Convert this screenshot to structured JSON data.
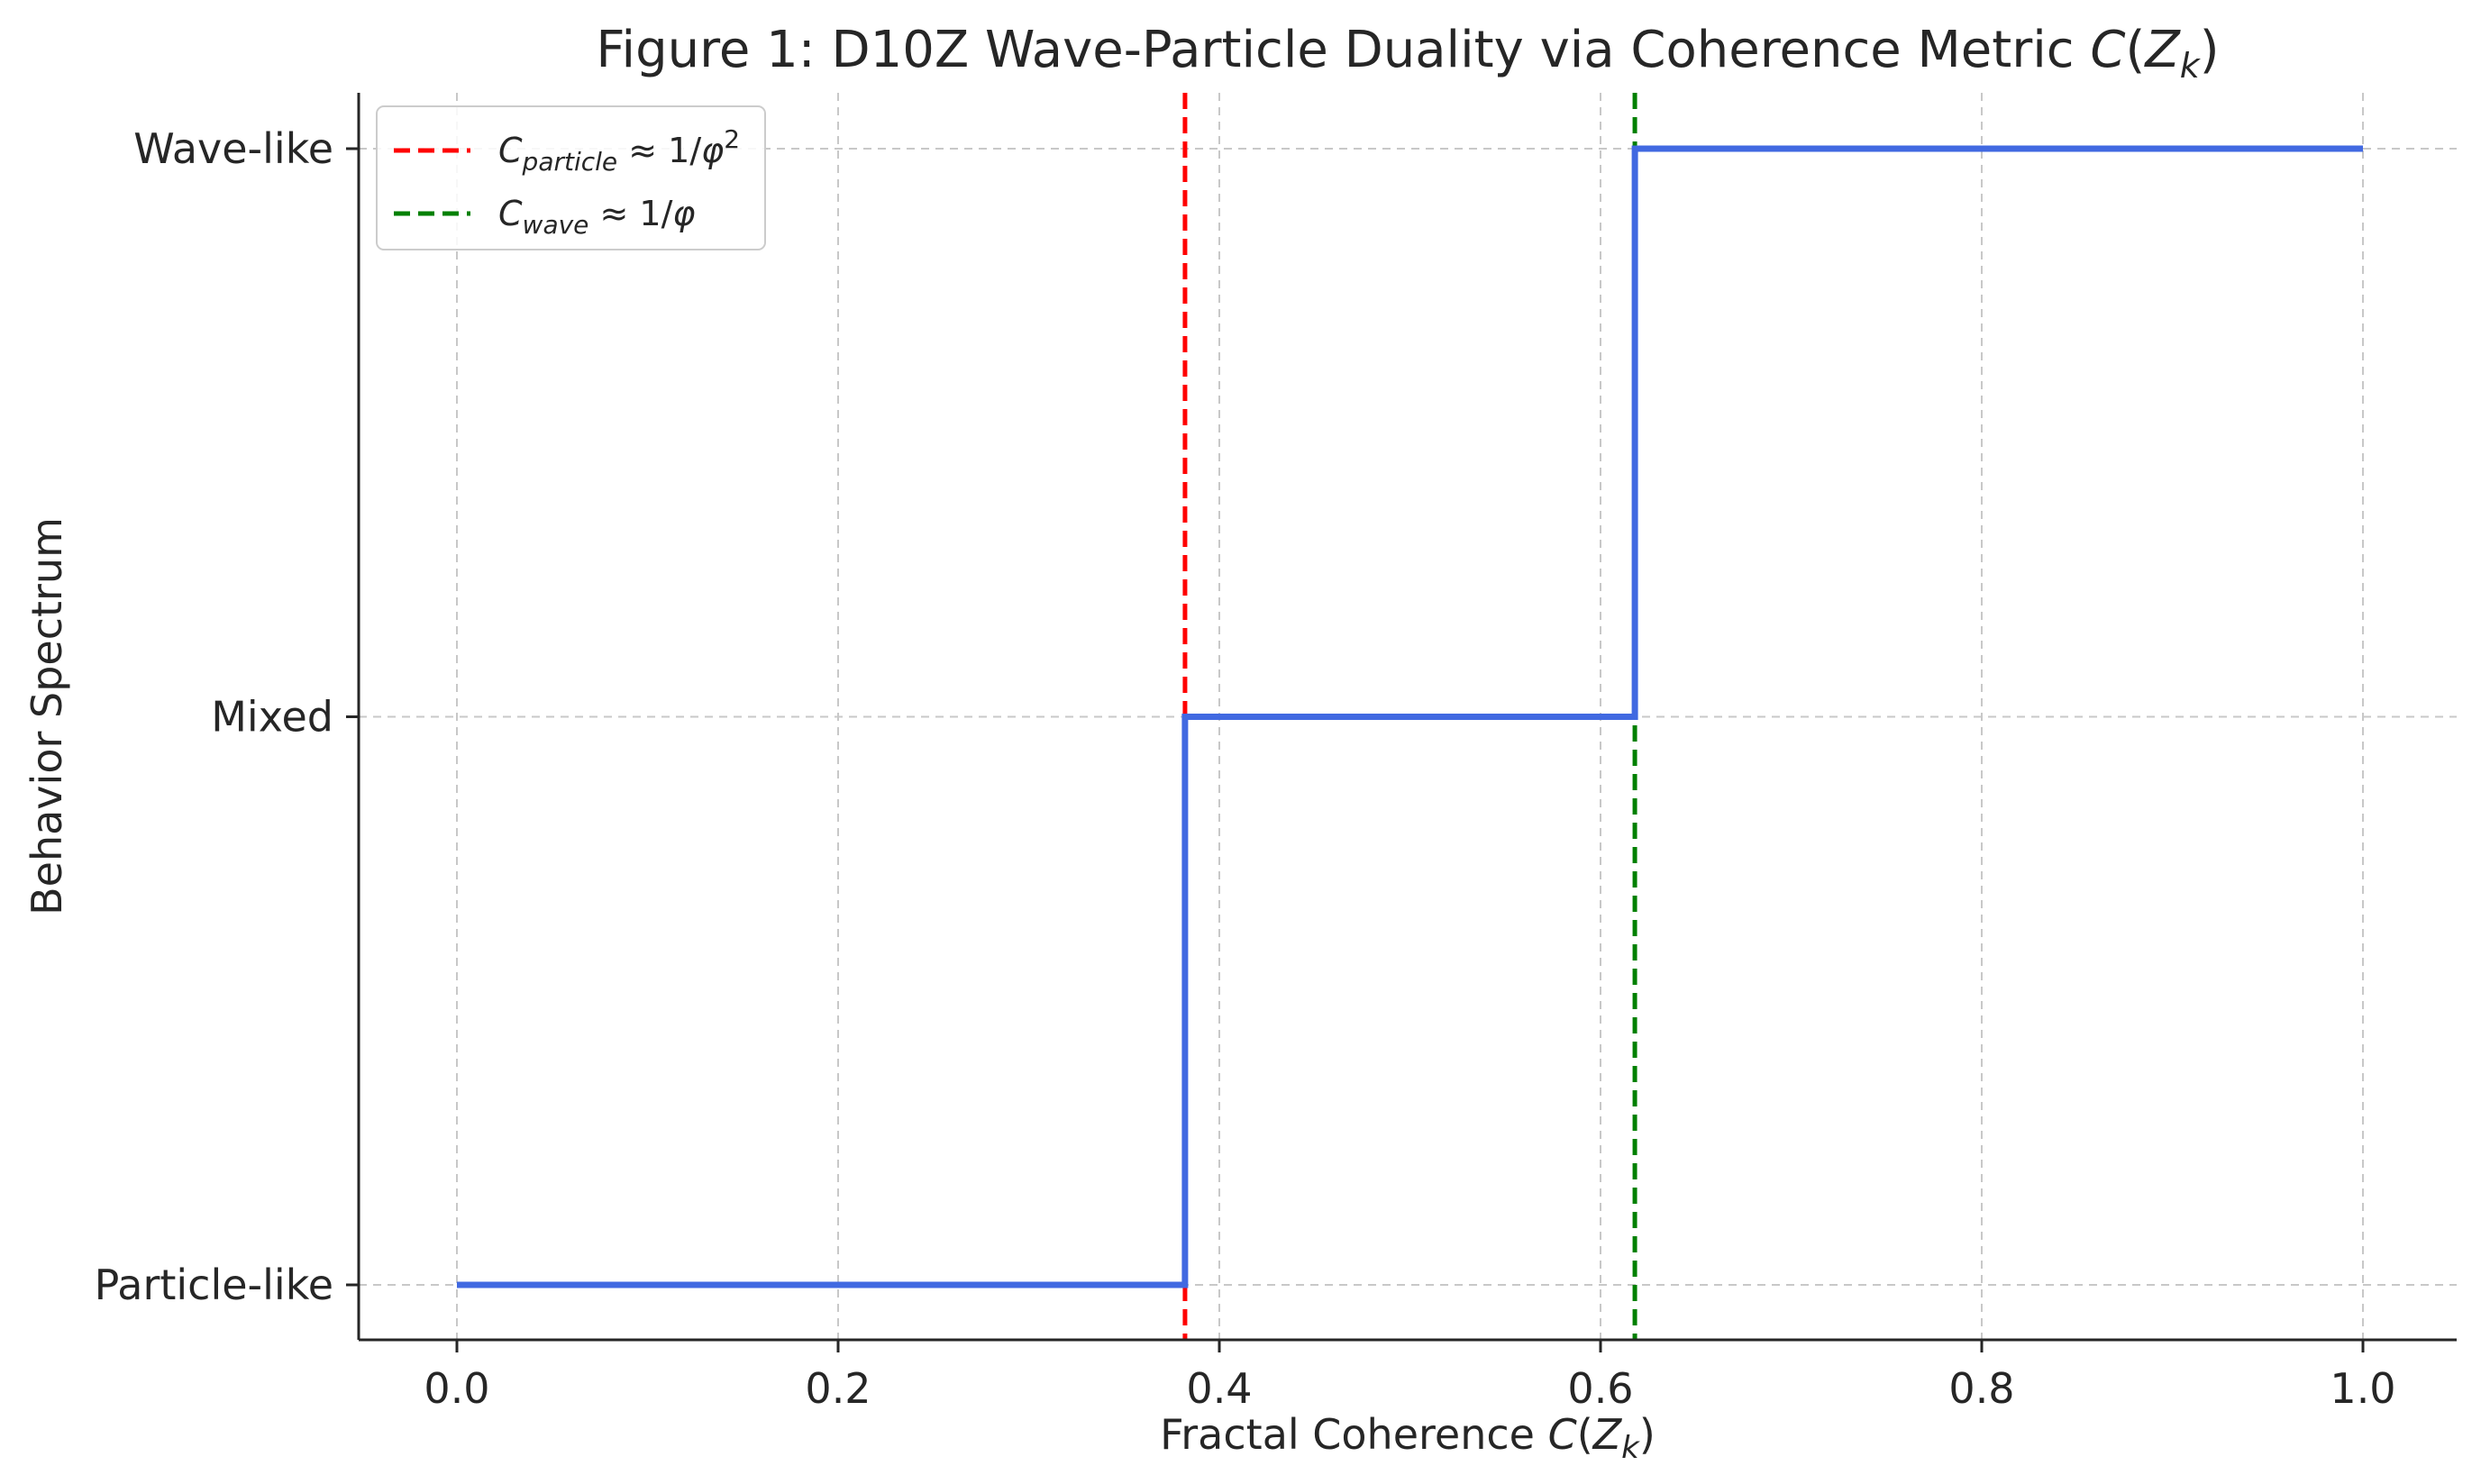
{
  "chart_data": {
    "type": "line",
    "title": {
      "prefix": "Figure 1: D10Z Wave-Particle Duality via Coherence Metric ",
      "math_main": "C",
      "math_open": "(",
      "math_var": "Z",
      "math_sub": "k",
      "math_close": ")"
    },
    "xlabel": {
      "prefix": "Fractal Coherence ",
      "math_main": "C",
      "math_open": "(",
      "math_var": "Z",
      "math_sub": "k",
      "math_close": ")"
    },
    "ylabel": "Behavior Spectrum",
    "xlim": [
      -0.05,
      1.05
    ],
    "ylim": [
      -0.1,
      2.1
    ],
    "x_ticks": [
      0.0,
      0.2,
      0.4,
      0.6,
      0.8,
      1.0
    ],
    "x_tick_labels": [
      "0.0",
      "0.2",
      "0.4",
      "0.6",
      "0.8",
      "1.0"
    ],
    "y_ticks": [
      0,
      1,
      2
    ],
    "y_tick_labels": [
      "Particle-like",
      "Mixed",
      "Wave-like"
    ],
    "grid": true,
    "legend_position": "top-left",
    "series": [
      {
        "style": "step",
        "color": "#4169e1",
        "points": [
          {
            "x": 0.0,
            "y": 0
          },
          {
            "x": 0.382,
            "y": 0
          },
          {
            "x": 0.382,
            "y": 1
          },
          {
            "x": 0.618,
            "y": 1
          },
          {
            "x": 0.618,
            "y": 2
          },
          {
            "x": 1.0,
            "y": 2
          }
        ]
      }
    ],
    "reference_lines": [
      {
        "x": 0.382,
        "color": "#ff0000",
        "style": "dashed",
        "legend": {
          "main": "C",
          "sub": "particle",
          "rest": " ≈ 1/",
          "var": "φ",
          "sup": "2"
        }
      },
      {
        "x": 0.618,
        "color": "#008000",
        "style": "dashed",
        "legend": {
          "main": "C",
          "sub": "wave",
          "rest": " ≈ 1/",
          "var": "φ",
          "sup": ""
        }
      }
    ]
  }
}
